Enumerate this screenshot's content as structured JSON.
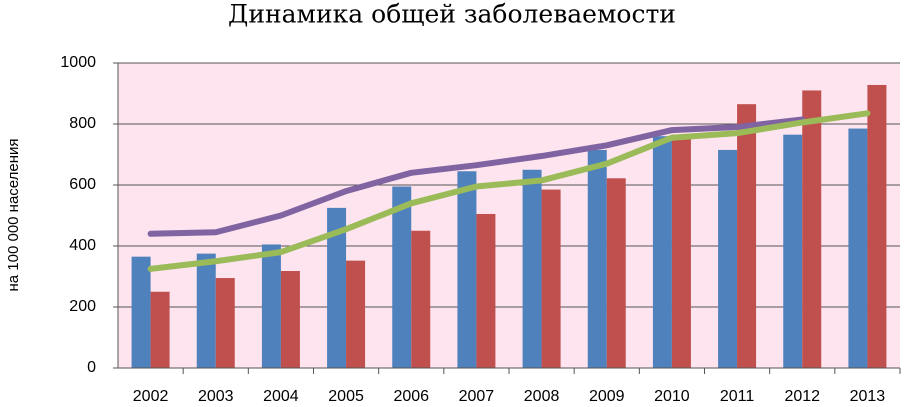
{
  "chart_data": {
    "type": "bar_line",
    "title": "Динамика общей заболеваемости",
    "ylabel": "на 100 000 населения",
    "categories": [
      "2002",
      "2003",
      "2004",
      "2005",
      "2006",
      "2007",
      "2008",
      "2009",
      "2010",
      "2011",
      "2012",
      "2013"
    ],
    "series": [
      {
        "type": "bar",
        "color": "#4f81bd",
        "values": [
          365,
          375,
          405,
          525,
          595,
          645,
          650,
          715,
          760,
          715,
          765,
          785
        ]
      },
      {
        "type": "bar",
        "color": "#c0504d",
        "values": [
          250,
          295,
          318,
          352,
          450,
          505,
          585,
          622,
          765,
          865,
          910,
          928
        ]
      },
      {
        "type": "line",
        "color": "#8064a2",
        "values": [
          440,
          445,
          500,
          580,
          640,
          665,
          695,
          730,
          780,
          790,
          815,
          null
        ]
      },
      {
        "type": "line",
        "color": "#9bbb59",
        "values": [
          325,
          350,
          380,
          455,
          540,
          595,
          615,
          670,
          755,
          770,
          805,
          835
        ]
      }
    ],
    "ylim": [
      0,
      1000
    ],
    "yticks": [
      0,
      200,
      400,
      600,
      800,
      1000
    ],
    "grid": true,
    "background": "#fde4ef"
  }
}
